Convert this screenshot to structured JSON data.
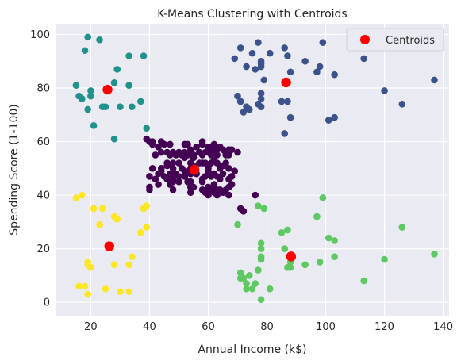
{
  "chart_data": {
    "type": "scatter",
    "title": "K-Means Clustering with Centroids",
    "xlabel": "Annual Income (k$)",
    "ylabel": "Spending Score (1-100)",
    "xlim": [
      8,
      142
    ],
    "ylim": [
      -5,
      104
    ],
    "xticks": [
      20,
      40,
      60,
      80,
      100,
      120,
      140
    ],
    "yticks": [
      0,
      20,
      40,
      60,
      80,
      100
    ],
    "grid": true,
    "style": "seaborn-darkgrid",
    "legend": {
      "position": "top-right",
      "label": "Centroids"
    },
    "background_color": "#eaeaf2",
    "series": [
      {
        "color": "#440154",
        "points": [
          [
            39,
            61
          ],
          [
            40,
            60
          ],
          [
            41,
            60
          ],
          [
            41,
            59
          ],
          [
            42,
            55
          ],
          [
            43,
            58
          ],
          [
            44,
            60
          ],
          [
            44,
            56
          ],
          [
            45,
            59
          ],
          [
            46,
            52
          ],
          [
            46,
            56
          ],
          [
            47,
            55
          ],
          [
            47,
            59
          ],
          [
            48,
            52
          ],
          [
            48,
            50
          ],
          [
            48,
            56
          ],
          [
            49,
            55
          ],
          [
            50,
            52
          ],
          [
            50,
            56
          ],
          [
            51,
            55
          ],
          [
            52,
            54
          ],
          [
            52,
            56
          ],
          [
            52,
            59
          ],
          [
            53,
            55
          ],
          [
            53,
            59
          ],
          [
            54,
            57
          ],
          [
            54,
            56
          ],
          [
            55,
            54
          ],
          [
            55,
            55
          ],
          [
            56,
            58
          ],
          [
            57,
            56
          ],
          [
            58,
            59
          ],
          [
            58,
            60
          ],
          [
            58,
            55
          ],
          [
            59,
            56
          ],
          [
            60,
            56
          ],
          [
            60,
            58
          ],
          [
            61,
            55
          ],
          [
            61,
            58
          ],
          [
            62,
            57
          ],
          [
            62,
            59
          ],
          [
            63,
            55
          ],
          [
            63,
            57
          ],
          [
            64,
            58
          ],
          [
            65,
            57
          ],
          [
            66,
            55
          ],
          [
            66,
            56
          ],
          [
            67,
            55
          ],
          [
            67,
            57
          ],
          [
            68,
            57
          ],
          [
            40,
            42
          ],
          [
            40,
            47
          ],
          [
            41,
            50
          ],
          [
            42,
            46
          ],
          [
            43,
            48
          ],
          [
            43,
            44
          ],
          [
            44,
            50
          ],
          [
            44,
            49
          ],
          [
            45,
            47
          ],
          [
            46,
            51
          ],
          [
            46,
            46
          ],
          [
            47,
            48
          ],
          [
            47,
            44
          ],
          [
            48,
            46
          ],
          [
            48,
            42
          ],
          [
            49,
            48
          ],
          [
            50,
            45
          ],
          [
            50,
            47
          ],
          [
            51,
            50
          ],
          [
            52,
            47
          ],
          [
            52,
            49
          ],
          [
            53,
            45
          ],
          [
            54,
            48
          ],
          [
            54,
            50
          ],
          [
            55,
            51
          ],
          [
            55,
            43
          ],
          [
            56,
            48
          ],
          [
            57,
            52
          ],
          [
            58,
            46
          ],
          [
            58,
            45
          ],
          [
            59,
            52
          ],
          [
            59,
            47
          ],
          [
            60,
            51
          ],
          [
            60,
            50
          ],
          [
            60,
            49
          ],
          [
            61,
            52
          ],
          [
            61,
            47
          ],
          [
            62,
            48
          ],
          [
            62,
            53
          ],
          [
            63,
            47
          ],
          [
            63,
            52
          ],
          [
            64,
            50
          ],
          [
            64,
            46
          ],
          [
            65,
            48
          ],
          [
            65,
            51
          ],
          [
            66,
            52
          ],
          [
            67,
            46
          ],
          [
            67,
            50
          ],
          [
            68,
            47
          ],
          [
            69,
            49
          ],
          [
            40,
            43
          ],
          [
            48,
            45
          ],
          [
            54,
            41
          ],
          [
            54,
            43
          ],
          [
            54,
            45
          ],
          [
            58,
            42
          ],
          [
            59,
            41
          ],
          [
            60,
            43
          ],
          [
            60,
            40
          ],
          [
            61,
            42
          ],
          [
            62,
            41
          ],
          [
            62,
            43
          ],
          [
            63,
            42
          ],
          [
            63,
            40
          ],
          [
            64,
            42
          ],
          [
            65,
            41
          ],
          [
            66,
            42
          ],
          [
            67,
            43
          ],
          [
            67,
            40
          ],
          [
            68,
            44
          ],
          [
            54,
            48
          ],
          [
            54,
            52
          ],
          [
            58,
            52
          ],
          [
            62,
            44
          ],
          [
            70,
            56
          ],
          [
            71,
            35
          ],
          [
            72,
            34
          ],
          [
            76,
            40
          ]
        ]
      },
      {
        "color": "#3b528b",
        "points": [
          [
            69,
            91
          ],
          [
            70,
            77
          ],
          [
            71,
            95
          ],
          [
            71,
            75
          ],
          [
            71,
            75
          ],
          [
            72,
            71
          ],
          [
            73,
            88
          ],
          [
            73,
            73
          ],
          [
            74,
            72
          ],
          [
            75,
            93
          ],
          [
            76,
            87
          ],
          [
            77,
            97
          ],
          [
            77,
            74
          ],
          [
            78,
            90
          ],
          [
            78,
            88
          ],
          [
            78,
            76
          ],
          [
            78,
            89
          ],
          [
            78,
            78
          ],
          [
            78,
            73
          ],
          [
            79,
            83
          ],
          [
            81,
            93
          ],
          [
            85,
            75
          ],
          [
            86,
            95
          ],
          [
            86,
            63
          ],
          [
            87,
            75
          ],
          [
            87,
            92
          ],
          [
            88,
            86
          ],
          [
            88,
            69
          ],
          [
            93,
            90
          ],
          [
            97,
            86
          ],
          [
            98,
            88
          ],
          [
            99,
            97
          ],
          [
            101,
            68
          ],
          [
            103,
            85
          ],
          [
            103,
            69
          ],
          [
            113,
            91
          ],
          [
            120,
            79
          ],
          [
            126,
            74
          ],
          [
            137,
            83
          ]
        ]
      },
      {
        "color": "#21918c",
        "points": [
          [
            15,
            81
          ],
          [
            16,
            77
          ],
          [
            17,
            76
          ],
          [
            18,
            94
          ],
          [
            19,
            72
          ],
          [
            19,
            99
          ],
          [
            20,
            77
          ],
          [
            20,
            79
          ],
          [
            21,
            66
          ],
          [
            23,
            98
          ],
          [
            24,
            73
          ],
          [
            25,
            73
          ],
          [
            28,
            82
          ],
          [
            28,
            61
          ],
          [
            29,
            87
          ],
          [
            30,
            73
          ],
          [
            33,
            92
          ],
          [
            33,
            81
          ],
          [
            34,
            73
          ],
          [
            37,
            75
          ],
          [
            38,
            92
          ],
          [
            39,
            65
          ]
        ]
      },
      {
        "color": "#5ec962",
        "points": [
          [
            70,
            29
          ],
          [
            71,
            9
          ],
          [
            71,
            11
          ],
          [
            72,
            9
          ],
          [
            73,
            5
          ],
          [
            73,
            7
          ],
          [
            74,
            10
          ],
          [
            75,
            5
          ],
          [
            76,
            7
          ],
          [
            77,
            12
          ],
          [
            77,
            36
          ],
          [
            78,
            22
          ],
          [
            78,
            17
          ],
          [
            78,
            20
          ],
          [
            78,
            16
          ],
          [
            78,
            1
          ],
          [
            79,
            35
          ],
          [
            81,
            5
          ],
          [
            85,
            26
          ],
          [
            86,
            20
          ],
          [
            87,
            27
          ],
          [
            87,
            13
          ],
          [
            88,
            13
          ],
          [
            88,
            15
          ],
          [
            93,
            14
          ],
          [
            97,
            32
          ],
          [
            98,
            15
          ],
          [
            99,
            39
          ],
          [
            101,
            24
          ],
          [
            103,
            23
          ],
          [
            103,
            17
          ],
          [
            113,
            8
          ],
          [
            120,
            16
          ],
          [
            126,
            28
          ],
          [
            137,
            18
          ]
        ]
      },
      {
        "color": "#fde725",
        "points": [
          [
            15,
            39
          ],
          [
            16,
            6
          ],
          [
            17,
            40
          ],
          [
            18,
            6
          ],
          [
            19,
            3
          ],
          [
            19,
            14
          ],
          [
            19,
            15
          ],
          [
            20,
            13
          ],
          [
            21,
            35
          ],
          [
            23,
            29
          ],
          [
            24,
            35
          ],
          [
            25,
            5
          ],
          [
            28,
            14
          ],
          [
            28,
            32
          ],
          [
            29,
            31
          ],
          [
            30,
            4
          ],
          [
            33,
            4
          ],
          [
            33,
            14
          ],
          [
            34,
            17
          ],
          [
            37,
            26
          ],
          [
            38,
            35
          ],
          [
            39,
            36
          ],
          [
            39,
            28
          ]
        ]
      }
    ],
    "centroids": {
      "name": "Centroids",
      "color": "#ff0000",
      "points": [
        [
          25.7,
          79.4
        ],
        [
          55.3,
          49.5
        ],
        [
          86.5,
          82.1
        ],
        [
          26.3,
          20.9
        ],
        [
          88.2,
          17.1
        ]
      ]
    }
  }
}
